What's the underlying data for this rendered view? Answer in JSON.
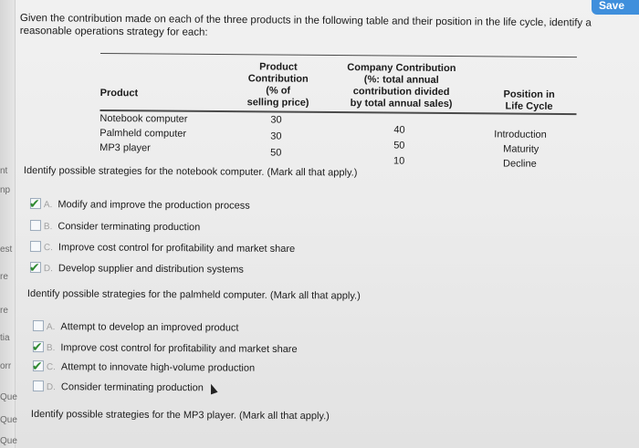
{
  "header": {
    "save_label": "Save"
  },
  "left_strip": [
    "nt",
    "np",
    "est",
    "re",
    "re",
    "tia",
    "orr",
    "Que",
    "Que",
    "Que"
  ],
  "intro": "Given the contribution made on each of the three products in the following table and their position in the life cycle, identify a reasonable operations strategy for each:",
  "table": {
    "headers": {
      "product": "Product",
      "product_contribution": [
        "Product",
        "Contribution",
        "(% of",
        "selling price)"
      ],
      "company_contribution": [
        "Company Contribution",
        "(%: total annual",
        "contribution divided",
        "by total annual sales)"
      ],
      "position": [
        "Position in",
        "Life Cycle"
      ]
    },
    "rows": [
      {
        "product": "Notebook computer",
        "product_contribution": "30",
        "company_contribution": "40",
        "position": "Introduction"
      },
      {
        "product": "Palmheld computer",
        "product_contribution": "30",
        "company_contribution": "50",
        "position": "Maturity"
      },
      {
        "product": "MP3 player",
        "product_contribution": "50",
        "company_contribution": "10",
        "position": "Decline"
      }
    ]
  },
  "questions": [
    {
      "prompt": "Identify possible strategies for the notebook computer. (Mark all that apply.)",
      "options": [
        {
          "letter": "A.",
          "text": "Modify and improve the production process",
          "checked": true
        },
        {
          "letter": "B.",
          "text": "Consider terminating production",
          "checked": false
        },
        {
          "letter": "C.",
          "text": "Improve cost control for profitability and market share",
          "checked": false
        },
        {
          "letter": "D.",
          "text": "Develop supplier and distribution systems",
          "checked": true
        }
      ]
    },
    {
      "prompt": "Identify possible strategies for the palmheld computer. (Mark all that apply.)",
      "options": [
        {
          "letter": "A.",
          "text": "Attempt to develop an improved product",
          "checked": false
        },
        {
          "letter": "B.",
          "text": "Improve cost control for profitability and market share",
          "checked": true
        },
        {
          "letter": "C.",
          "text": "Attempt to innovate high-volume production",
          "checked": true
        },
        {
          "letter": "D.",
          "text": "Consider terminating production",
          "checked": false
        }
      ]
    },
    {
      "prompt": "Identify possible strategies for the MP3 player. (Mark all that apply.)",
      "options": []
    }
  ]
}
